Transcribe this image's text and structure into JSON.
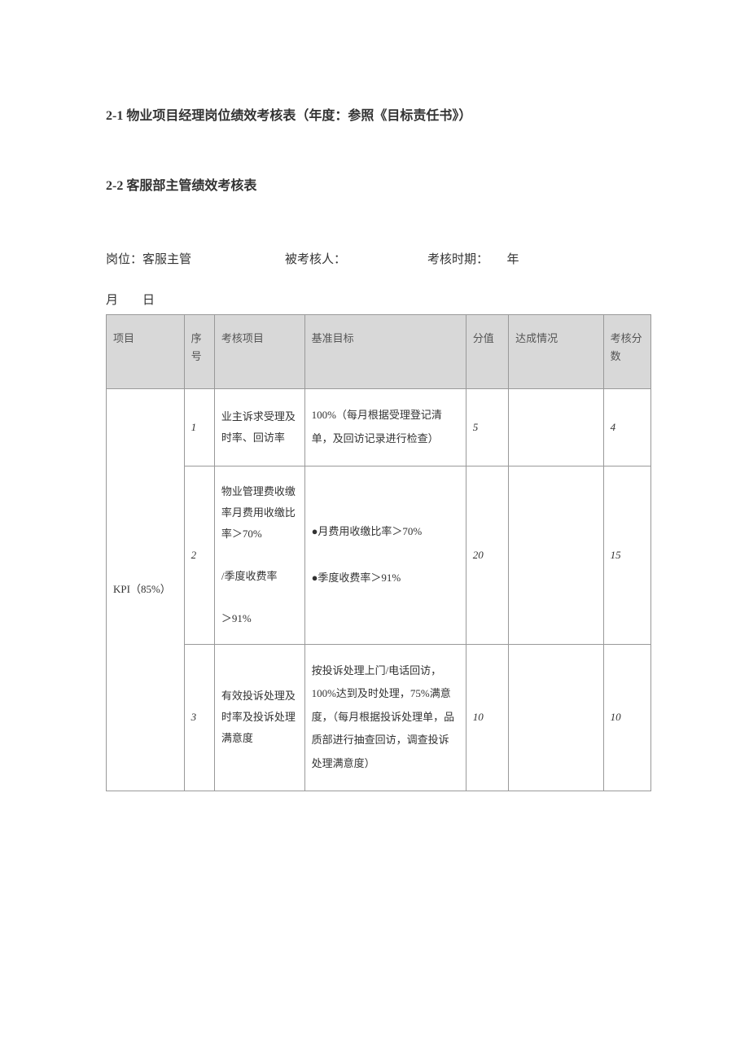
{
  "headings": {
    "h1": "2-1 物业项目经理岗位绩效考核表（年度：参照《目标责任书》）",
    "h2": "2-2 客服部主管绩效考核表"
  },
  "meta": {
    "position_label": "岗位：客服主管",
    "assessee_label": "被考核人：",
    "period_label": "考核时期：　　年",
    "date_line": "月　　日"
  },
  "table": {
    "headers": {
      "project": "项目",
      "seq": "序号",
      "item": "考核项目",
      "target": "基准目标",
      "score": "分值",
      "status": "达成情况",
      "result": "考核分数"
    },
    "project_label": "KPI（85%）",
    "rows": [
      {
        "seq": "1",
        "item": "业主诉求受理及时率、回访率",
        "target": "100%（每月根据受理登记清单，及回访记录进行检查）",
        "score": "5",
        "status": "",
        "result": "4"
      },
      {
        "seq": "2",
        "item": "物业管理费收缴率月费用收缴比率＞70%\n/季度收费率\n＞91%",
        "target": "●月费用收缴比率＞70%\n●季度收费率＞91%",
        "score": "20",
        "status": "",
        "result": "15"
      },
      {
        "seq": "3",
        "item": "有效投诉处理及时率及投诉处理满意度",
        "target": "按投诉处理上门/电话回访，100%达到及时处理，75%满意度，（每月根据投诉处理单，品质部进行抽查回访，调查投诉处理满意度）",
        "score": "10",
        "status": "",
        "result": "10"
      }
    ]
  },
  "colors": {
    "header_bg": "#d8d8d8",
    "border": "#999999",
    "text": "#333333"
  }
}
